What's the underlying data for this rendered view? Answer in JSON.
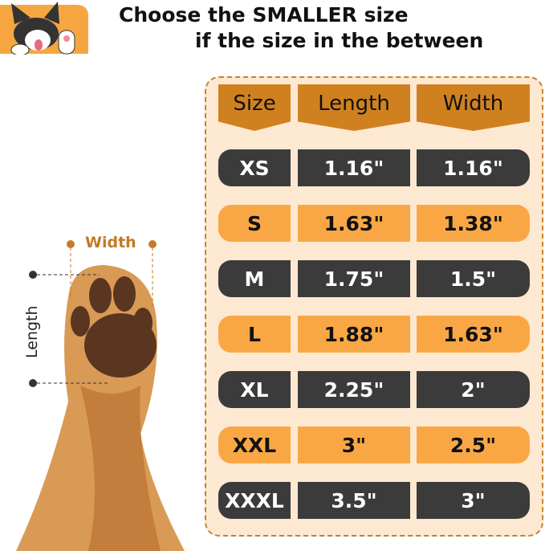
{
  "heading": {
    "line1": "Choose the SMALLER size",
    "line2": "if the size in the between"
  },
  "diagram": {
    "width_label": "Width",
    "length_label": "Length"
  },
  "table": {
    "headers": [
      "Size",
      "Length",
      "Width"
    ],
    "rows": [
      {
        "size": "XS",
        "length": "1.16\"",
        "width": "1.16\"",
        "style": "dark"
      },
      {
        "size": "S",
        "length": "1.63\"",
        "width": "1.38\"",
        "style": "light"
      },
      {
        "size": "M",
        "length": "1.75\"",
        "width": "1.5\"",
        "style": "dark"
      },
      {
        "size": "L",
        "length": "1.88\"",
        "width": "1.63\"",
        "style": "light"
      },
      {
        "size": "XL",
        "length": "2.25\"",
        "width": "2\"",
        "style": "dark"
      },
      {
        "size": "XXL",
        "length": "3\"",
        "width": "2.5\"",
        "style": "light"
      },
      {
        "size": "XXXL",
        "length": "3.5\"",
        "width": "3\"",
        "style": "dark"
      }
    ]
  },
  "colors": {
    "header": "#d0811f",
    "dark_row": "#3b3b3b",
    "light_row": "#f9a745",
    "panel": "#fde8d2",
    "accent": "#c27a27"
  }
}
